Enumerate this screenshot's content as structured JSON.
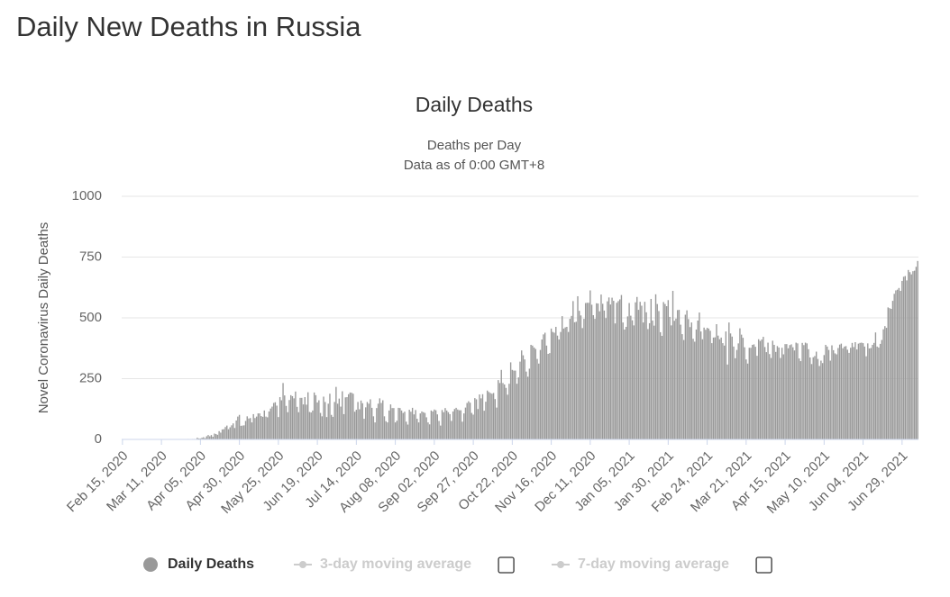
{
  "page_heading": "Daily New Deaths in Russia",
  "chart_data": {
    "type": "bar",
    "title": "Daily Deaths",
    "subtitle": [
      "Deaths per Day",
      "Data as of 0:00 GMT+8"
    ],
    "y_label": "Novel Coronavirus Daily Deaths",
    "ylim": [
      0,
      1000
    ],
    "yticks": [
      0,
      250,
      500,
      750,
      1000
    ],
    "grid": true,
    "categories": [
      "Feb 15, 2020",
      null,
      null,
      null,
      null,
      null,
      null,
      null,
      null,
      null,
      null,
      null,
      null,
      null,
      null,
      null,
      null,
      null,
      null,
      null,
      null,
      null,
      null,
      null,
      null,
      "Mar 11, 2020",
      null,
      null,
      null,
      null,
      null,
      null,
      null,
      null,
      null,
      null,
      null,
      null,
      null,
      null,
      null,
      null,
      null,
      null,
      null,
      null,
      null,
      null,
      null,
      null,
      "Apr 05, 2020",
      null,
      null,
      null,
      null,
      null,
      null,
      null,
      null,
      null,
      null,
      null,
      null,
      null,
      null,
      null,
      null,
      null,
      null,
      null,
      null,
      null,
      null,
      null,
      null,
      "Apr 30, 2020",
      null,
      null,
      null,
      null,
      null,
      null,
      null,
      null,
      null,
      null,
      null,
      null,
      null,
      null,
      null,
      null,
      null,
      null,
      null,
      null,
      null,
      null,
      null,
      null,
      "May 25, 2020",
      null,
      null,
      null,
      null,
      null,
      null,
      null,
      null,
      null,
      null,
      null,
      null,
      null,
      null,
      null,
      null,
      null,
      null,
      null,
      null,
      null,
      null,
      null,
      null,
      "Jun 19, 2020",
      null,
      null,
      null,
      null,
      null,
      null,
      null,
      null,
      null,
      null,
      null,
      null,
      null,
      null,
      null,
      null,
      null,
      null,
      null,
      null,
      null,
      null,
      null,
      null,
      "Jul 14, 2020",
      null,
      null,
      null,
      null,
      null,
      null,
      null,
      null,
      null,
      null,
      null,
      null,
      null,
      null,
      null,
      null,
      null,
      null,
      null,
      null,
      null,
      null,
      null,
      null,
      "Aug 08, 2020",
      null,
      null,
      null,
      null,
      null,
      null,
      null,
      null,
      null,
      null,
      null,
      null,
      null,
      null,
      null,
      null,
      null,
      null,
      null,
      null,
      null,
      null,
      null,
      null,
      "Sep 02, 2020",
      null,
      null,
      null,
      null,
      null,
      null,
      null,
      null,
      null,
      null,
      null,
      null,
      null,
      null,
      null,
      null,
      null,
      null,
      null,
      null,
      null,
      null,
      null,
      null,
      "Sep 27, 2020",
      null,
      null,
      null,
      null,
      null,
      null,
      null,
      null,
      null,
      null,
      null,
      null,
      null,
      null,
      null,
      null,
      null,
      null,
      null,
      null,
      null,
      null,
      null,
      null,
      "Oct 22, 2020",
      null,
      null,
      null,
      null,
      null,
      null,
      null,
      null,
      null,
      null,
      null,
      null,
      null,
      null,
      null,
      null,
      null,
      null,
      null,
      null,
      null,
      null,
      null,
      null,
      "Nov 16, 2020",
      null,
      null,
      null,
      null,
      null,
      null,
      null,
      null,
      null,
      null,
      null,
      null,
      null,
      null,
      null,
      null,
      null,
      null,
      null,
      null,
      null,
      null,
      null,
      null,
      "Dec 11, 2020",
      null,
      null,
      null,
      null,
      null,
      null,
      null,
      null,
      null,
      null,
      null,
      null,
      null,
      null,
      null,
      null,
      null,
      null,
      null,
      null,
      null,
      null,
      null,
      null,
      "Jan 05, 2021",
      null,
      null,
      null,
      null,
      null,
      null,
      null,
      null,
      null,
      null,
      null,
      null,
      null,
      null,
      null,
      null,
      null,
      null,
      null,
      null,
      null,
      null,
      null,
      null,
      "Jan 30, 2021",
      null,
      null,
      null,
      null,
      null,
      null,
      null,
      null,
      null,
      null,
      null,
      null,
      null,
      null,
      null,
      null,
      null,
      null,
      null,
      null,
      null,
      null,
      null,
      null,
      "Feb 24, 2021",
      null,
      null,
      null,
      null,
      null,
      null,
      null,
      null,
      null,
      null,
      null,
      null,
      null,
      null,
      null,
      null,
      null,
      null,
      null,
      null,
      null,
      null,
      null,
      null,
      "Mar 21, 2021",
      null,
      null,
      null,
      null,
      null,
      null,
      null,
      null,
      null,
      null,
      null,
      null,
      null,
      null,
      null,
      null,
      null,
      null,
      null,
      null,
      null,
      null,
      null,
      null,
      "Apr 15, 2021",
      null,
      null,
      null,
      null,
      null,
      null,
      null,
      null,
      null,
      null,
      null,
      null,
      null,
      null,
      null,
      null,
      null,
      null,
      null,
      null,
      null,
      null,
      null,
      null,
      "May 10, 2021",
      null,
      null,
      null,
      null,
      null,
      null,
      null,
      null,
      null,
      null,
      null,
      null,
      null,
      null,
      null,
      null,
      null,
      null,
      null,
      null,
      null,
      null,
      null,
      null,
      "Jun 04, 2021",
      null,
      null,
      null,
      null,
      null,
      null,
      null,
      null,
      null,
      null,
      null,
      null,
      null,
      null,
      null,
      null,
      null,
      null,
      null,
      null,
      null,
      null,
      null,
      null,
      "Jun 29, 2021",
      null,
      null,
      null,
      null,
      null,
      null,
      null,
      null,
      null,
      null
    ],
    "series": [
      {
        "name": "Daily Deaths",
        "color": "#999999",
        "values": [
          0,
          0,
          0,
          0,
          0,
          0,
          0,
          0,
          0,
          0,
          0,
          0,
          0,
          0,
          0,
          0,
          0,
          0,
          0,
          0,
          0,
          0,
          0,
          0,
          0,
          0,
          0,
          0,
          0,
          0,
          0,
          0,
          0,
          1,
          0,
          0,
          0,
          0,
          1,
          1,
          0,
          1,
          2,
          1,
          1,
          2,
          2,
          2,
          7,
          4,
          4,
          7,
          9,
          5,
          13,
          18,
          13,
          18,
          11,
          24,
          22,
          19,
          34,
          28,
          41,
          42,
          51,
          57,
          42,
          50,
          58,
          66,
          47,
          78,
          94,
          101,
          56,
          57,
          58,
          76,
          95,
          86,
          88,
          70,
          104,
          88,
          94,
          107,
          107,
          96,
          93,
          119,
          94,
          91,
          115,
          127,
          135,
          150,
          153,
          139,
          92,
          174,
          161,
          232,
          181,
          138,
          112,
          162,
          182,
          178,
          169,
          197,
          134,
          112,
          171,
          171,
          144,
          174,
          143,
          194,
          113,
          111,
          119,
          193,
          182,
          152,
          161,
          109,
          95,
          176,
          154,
          92,
          147,
          188,
          101,
          93,
          154,
          216,
          147,
          168,
          135,
          198,
          104,
          173,
          174,
          186,
          193,
          192,
          188,
          114,
          122,
          154,
          124,
          160,
          149,
          85,
          132,
          154,
          147,
          165,
          130,
          95,
          70,
          129,
          147,
          169,
          150,
          161,
          95,
          75,
          70,
          119,
          144,
          129,
          129,
          70,
          77,
          130,
          129,
          119,
          109,
          114,
          73,
          61,
          122,
          114,
          130,
          103,
          121,
          85,
          70,
          107,
          115,
          112,
          109,
          91,
          70,
          62,
          119,
          115,
          123,
          120,
          103,
          76,
          57,
          121,
          112,
          129,
          119,
          112,
          104,
          76,
          115,
          125,
          130,
          123,
          120,
          120,
          73,
          107,
          131,
          150,
          157,
          151,
          109,
          102,
          170,
          165,
          125,
          185,
          169,
          186,
          118,
          155,
          201,
          195,
          191,
          188,
          191,
          166,
          131,
          244,
          232,
          286,
          232,
          226,
          212,
          184,
          229,
          317,
          286,
          283,
          283,
          229,
          255,
          320,
          366,
          346,
          329,
          279,
          258,
          291,
          389,
          386,
          378,
          372,
          331,
          312,
          368,
          411,
          432,
          439,
          386,
          352,
          355,
          456,
          442,
          439,
          463,
          427,
          411,
          442,
          507,
          456,
          461,
          463,
          442,
          496,
          508,
          569,
          482,
          484,
          589,
          529,
          510,
          458,
          496,
          561,
          562,
          562,
          613,
          554,
          511,
          496,
          560,
          559,
          527,
          596,
          558,
          530,
          499,
          568,
          584,
          555,
          583,
          570,
          477,
          562,
          569,
          576,
          594,
          481,
          452,
          463,
          506,
          561,
          509,
          490,
          469,
          564,
          586,
          533,
          566,
          550,
          481,
          566,
          523,
          454,
          478,
          578,
          489,
          468,
          597,
          557,
          528,
          441,
          426,
          565,
          557,
          548,
          573,
          504,
          469,
          611,
          488,
          497,
          532,
          533,
          472,
          433,
          409,
          513,
          531,
          495,
          462,
          481,
          414,
          402,
          452,
          489,
          522,
          444,
          412,
          460,
          451,
          459,
          456,
          447,
          396,
          419,
          420,
          474,
          427,
          412,
          419,
          396,
          386,
          444,
          308,
          481,
          436,
          423,
          382,
          334,
          368,
          395,
          457,
          431,
          418,
          379,
          329,
          312,
          377,
          377,
          389,
          391,
          381,
          344,
          412,
          405,
          411,
          422,
          380,
          359,
          398,
          351,
          335,
          406,
          389,
          360,
          384,
          378,
          335,
          377,
          350,
          392,
          392,
          375,
          388,
          391,
          379,
          366,
          398,
          395,
          333,
          322,
          397,
          388,
          398,
          395,
          371,
          337,
          310,
          338,
          343,
          361,
          331,
          302,
          324,
          314,
          347,
          389,
          382,
          368,
          324,
          387,
          367,
          354,
          350,
          376,
          390,
          394,
          375,
          382,
          384,
          369,
          356,
          377,
          397,
          380,
          400,
          370,
          394,
          397,
          398,
          396,
          382,
          342,
          395,
          374,
          376,
          389,
          397,
          440,
          382,
          378,
          393,
          409,
          453,
          466,
          459,
          543,
          540,
          537,
          570,
          599,
          613,
          616,
          623,
          611,
          652,
          669,
          672,
          654,
          697,
          688,
          679,
          692,
          694,
          710,
          734
        ]
      }
    ],
    "hidden_series": [
      {
        "name": "3-day moving average",
        "color": "#cccccc"
      },
      {
        "name": "7-day moving average",
        "color": "#cccccc"
      }
    ]
  }
}
